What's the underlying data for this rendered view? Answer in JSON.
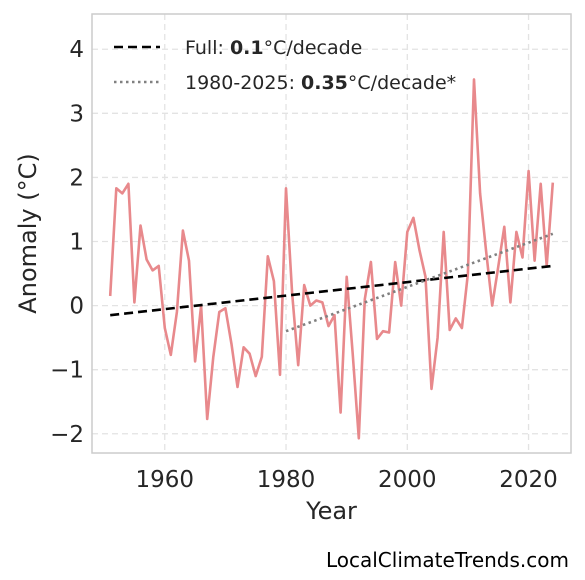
{
  "chart_data": {
    "type": "line",
    "xlabel": "Year",
    "ylabel": "Anomaly (°C)",
    "xlim": [
      1948,
      2027
    ],
    "ylim": [
      -2.3,
      4.55
    ],
    "x_ticks": [
      1960,
      1980,
      2000,
      2020
    ],
    "x_tick_labels": [
      "1960",
      "1980",
      "2000",
      "2020"
    ],
    "y_ticks": [
      -2,
      -1,
      0,
      1,
      2,
      3,
      4
    ],
    "y_tick_labels": [
      "−2",
      "−1",
      "0",
      "1",
      "2",
      "3",
      "4"
    ],
    "grid": true,
    "legend_position": "top-left",
    "series": [
      {
        "style": "solid",
        "color": "#e8898c",
        "x": [
          1951,
          1952,
          1953,
          1954,
          1955,
          1956,
          1957,
          1958,
          1959,
          1960,
          1961,
          1962,
          1963,
          1964,
          1965,
          1966,
          1967,
          1968,
          1969,
          1970,
          1971,
          1972,
          1973,
          1974,
          1975,
          1976,
          1977,
          1978,
          1979,
          1980,
          1981,
          1982,
          1983,
          1984,
          1985,
          1986,
          1987,
          1988,
          1989,
          1990,
          1991,
          1992,
          1993,
          1994,
          1995,
          1996,
          1997,
          1998,
          1999,
          2000,
          2001,
          2002,
          2003,
          2004,
          2005,
          2006,
          2007,
          2008,
          2009,
          2010,
          2011,
          2012,
          2013,
          2014,
          2015,
          2016,
          2017,
          2018,
          2019,
          2020,
          2021,
          2022,
          2023,
          2024
        ],
        "y": [
          0.15,
          1.83,
          1.75,
          1.9,
          0.05,
          1.25,
          0.72,
          0.55,
          0.62,
          -0.35,
          -0.77,
          -0.1,
          1.17,
          0.7,
          -0.87,
          0.0,
          -1.77,
          -0.8,
          -0.1,
          -0.04,
          -0.6,
          -1.27,
          -0.65,
          -0.75,
          -1.1,
          -0.8,
          0.77,
          0.38,
          -1.08,
          1.83,
          0.2,
          -0.93,
          0.32,
          0.0,
          0.08,
          0.05,
          -0.32,
          -0.15,
          -1.67,
          0.45,
          -0.75,
          -2.07,
          0.1,
          0.68,
          -0.52,
          -0.4,
          -0.42,
          0.68,
          0.0,
          1.15,
          1.37,
          0.87,
          0.45,
          -1.3,
          -0.5,
          1.15,
          -0.38,
          -0.2,
          -0.35,
          0.5,
          3.53,
          1.75,
          0.85,
          0.0,
          0.6,
          1.23,
          0.05,
          1.15,
          0.75,
          2.1,
          0.7,
          1.9,
          0.62,
          1.92
        ]
      },
      {
        "name": "Full: ",
        "rate": "0.1",
        "unit": "°C/decade",
        "style": "dashed",
        "color": "#000000",
        "x": [
          1951,
          2024
        ],
        "y": [
          -0.15,
          0.62
        ]
      },
      {
        "name": "1980-2025: ",
        "rate": "0.35",
        "unit": "°C/decade*",
        "style": "dotted",
        "color": "#808080",
        "x": [
          1980,
          2024
        ],
        "y": [
          -0.4,
          1.12
        ]
      }
    ]
  },
  "source": "LocalClimateTrends.com"
}
